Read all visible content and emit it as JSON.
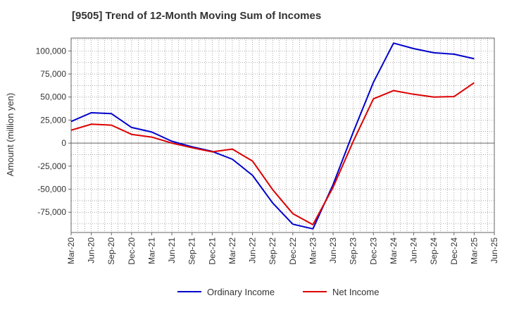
{
  "chart_data": {
    "type": "line",
    "title": "[9505]  Trend of 12-Month Moving Sum of Incomes",
    "ylabel": "Amount (million yen)",
    "xlabel": "",
    "x": [
      "Mar-20",
      "Jun-20",
      "Sep-20",
      "Dec-20",
      "Mar-21",
      "Jun-21",
      "Sep-21",
      "Dec-21",
      "Mar-22",
      "Jun-22",
      "Sep-22",
      "Dec-22",
      "Mar-23",
      "Jun-23",
      "Sep-23",
      "Dec-23",
      "Mar-24",
      "Jun-24",
      "Sep-24",
      "Dec-24",
      "Mar-25",
      "Jun-25"
    ],
    "ylim": [
      -97000,
      114000
    ],
    "yticks": [
      -75000,
      -50000,
      -25000,
      0,
      25000,
      50000,
      75000,
      100000
    ],
    "ytick_labels": [
      "-75,000",
      "-50,000",
      "-25,000",
      "0",
      "25,000",
      "50,000",
      "75,000",
      "100,000"
    ],
    "grid": true,
    "legend_position": "bottom",
    "series": [
      {
        "name": "Ordinary Income",
        "color": "#0000cc",
        "values": [
          23500,
          33000,
          32000,
          17000,
          12000,
          2000,
          -4000,
          -9000,
          -17500,
          -35000,
          -65000,
          -88000,
          -93000,
          -45000,
          12000,
          66000,
          108500,
          102500,
          98000,
          96500,
          91500,
          null
        ]
      },
      {
        "name": "Net Income",
        "color": "#dd0000",
        "values": [
          14000,
          20500,
          19500,
          9500,
          6500,
          0,
          -5000,
          -9500,
          -6500,
          -19500,
          -50500,
          -76500,
          -88500,
          -48000,
          2000,
          48000,
          57000,
          53000,
          50000,
          50500,
          65500,
          null
        ]
      }
    ]
  }
}
